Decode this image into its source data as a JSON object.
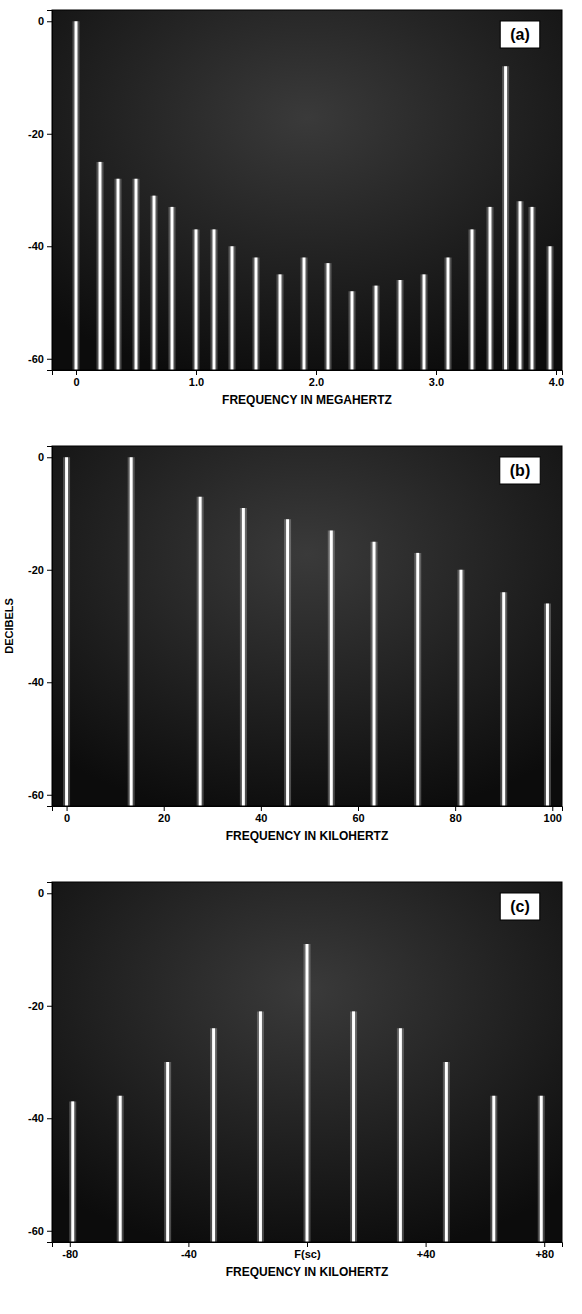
{
  "chart_data": [
    {
      "type": "stem",
      "title": "(a)",
      "x_label": "FREQUENCY IN MEGAHERTZ",
      "x": [
        0,
        0.2,
        0.35,
        0.5,
        0.65,
        0.8,
        1.0,
        1.15,
        1.3,
        1.5,
        1.7,
        1.9,
        2.1,
        2.3,
        2.5,
        2.7,
        2.9,
        3.1,
        3.3,
        3.45,
        3.58,
        3.7,
        3.8,
        3.95
      ],
      "values": [
        0,
        -25,
        -28,
        -28,
        -31,
        -33,
        -37,
        -37,
        -40,
        -42,
        -45,
        -42,
        -43,
        -48,
        -47,
        -46,
        -45,
        -42,
        -37,
        -33,
        -8,
        -32,
        -33,
        -40
      ],
      "color": "#ffffff",
      "xlim": [
        -0.2,
        4.05
      ],
      "ylim": [
        -62,
        2
      ],
      "xticks": [
        0,
        {
          "value": 1,
          "label": "1.0"
        },
        {
          "value": 2,
          "label": "2.0"
        },
        {
          "value": 3,
          "label": "3.0"
        },
        {
          "value": 4,
          "label": "4.0"
        }
      ],
      "yticks": [
        0,
        -20,
        -40,
        -60
      ]
    },
    {
      "type": "stem",
      "title": "(b)",
      "x_label": "FREQUENCY IN KILOHERTZ",
      "y_label": "DECIBELS",
      "x": [
        0,
        13.3,
        27.5,
        36.4,
        45.5,
        54.5,
        63.3,
        72.3,
        81.2,
        90,
        99
      ],
      "values": [
        0,
        0,
        -7,
        -9,
        -11,
        -13,
        -15,
        -17,
        -20,
        -24,
        -26
      ],
      "color": "#ffffff",
      "xlim": [
        -3,
        102
      ],
      "ylim": [
        -62,
        2
      ],
      "xticks": [
        0,
        20,
        40,
        60,
        80,
        100
      ],
      "yticks": [
        0,
        -20,
        -40,
        -60
      ]
    },
    {
      "type": "stem",
      "title": "(c)",
      "x_label": "FREQUENCY IN KILOHERTZ",
      "x": [
        -79,
        -63,
        -47,
        -31.5,
        -15.7,
        0,
        15.7,
        31.5,
        47,
        63,
        79
      ],
      "values": [
        -37,
        -36,
        -30,
        -24,
        -21,
        -9,
        -21,
        -24,
        -30,
        -36,
        -36
      ],
      "color": "#ffffff",
      "xlim": [
        -86,
        86
      ],
      "ylim": [
        -62,
        2
      ],
      "xticks": [
        -80,
        -40,
        {
          "value": 0,
          "label": "F(sc)"
        },
        {
          "value": 40,
          "label": "+40"
        },
        {
          "value": 80,
          "label": "+80"
        }
      ],
      "yticks": [
        0,
        -20,
        -40,
        -60
      ]
    }
  ]
}
